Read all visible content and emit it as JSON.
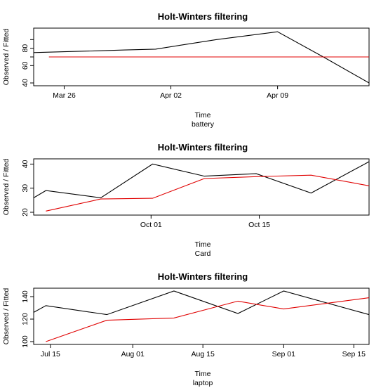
{
  "colors": {
    "observed": "#000000",
    "fitted": "#e00000",
    "axes": "#000000"
  },
  "chart_data": [
    {
      "type": "line",
      "title": "Holt-Winters filtering",
      "xlabel": "Time",
      "sublabel": "battery",
      "ylabel": "Observed / Fitted",
      "x": [
        0,
        1,
        2,
        3,
        4,
        5,
        6,
        7,
        8,
        9,
        10,
        11
      ],
      "xlim": [
        0,
        11
      ],
      "ylim": [
        40,
        100
      ],
      "yticks": [
        40,
        60,
        70,
        80,
        90
      ],
      "ytick_labels": [
        "40",
        "60",
        "80"
      ],
      "ytick_label_values": [
        40,
        60,
        80
      ],
      "xticks": [
        {
          "x": 1,
          "label": "Mar 26"
        },
        {
          "x": 4.5,
          "label": "Apr 02"
        },
        {
          "x": 8,
          "label": "Apr 09"
        }
      ],
      "series": [
        {
          "role": "observed",
          "points": [
            [
              0,
              75
            ],
            [
              1,
              76
            ],
            [
              2,
              77
            ],
            [
              3,
              78
            ],
            [
              4,
              79
            ],
            [
              6,
              90
            ],
            [
              8,
              99
            ],
            [
              9.5,
              70
            ],
            [
              11,
              40
            ]
          ]
        },
        {
          "role": "fitted",
          "points": [
            [
              0.5,
              70
            ],
            [
              11,
              70
            ]
          ]
        }
      ]
    },
    {
      "type": "line",
      "title": "Holt-Winters filtering",
      "xlabel": "Time",
      "sublabel": "Card",
      "ylabel": "Observed / Fitted",
      "xlim": [
        0,
        11
      ],
      "ylim": [
        20,
        41
      ],
      "yticks": [
        20,
        30,
        40
      ],
      "ytick_labels": [
        "20",
        "30",
        "40"
      ],
      "ytick_label_values": [
        20,
        30,
        40
      ],
      "xticks": [
        {
          "x": 3.85,
          "label": "Oct 01"
        },
        {
          "x": 7.4,
          "label": "Oct 15"
        }
      ],
      "series": [
        {
          "role": "observed",
          "points": [
            [
              0,
              26
            ],
            [
              0.4,
              29
            ],
            [
              2.2,
              26
            ],
            [
              3.9,
              40
            ],
            [
              5.6,
              35
            ],
            [
              7.3,
              36
            ],
            [
              9.1,
              28
            ],
            [
              11,
              41
            ]
          ]
        },
        {
          "role": "fitted",
          "points": [
            [
              0.4,
              20.5
            ],
            [
              2.2,
              25.5
            ],
            [
              3.9,
              25.8
            ],
            [
              5.6,
              34
            ],
            [
              7.3,
              34.8
            ],
            [
              9.1,
              35.4
            ],
            [
              11,
              31
            ]
          ]
        }
      ]
    },
    {
      "type": "line",
      "title": "Holt-Winters filtering",
      "xlabel": "Time",
      "sublabel": "laptop",
      "ylabel": "Observed / Fitted",
      "xlim": [
        0,
        11
      ],
      "ylim": [
        100,
        145
      ],
      "yticks": [
        100,
        120,
        140
      ],
      "ytick_labels": [
        "100",
        "120",
        "140"
      ],
      "ytick_label_values": [
        100,
        120,
        140
      ],
      "xticks": [
        {
          "x": 0.55,
          "label": "Jul 15"
        },
        {
          "x": 3.25,
          "label": "Aug 01"
        },
        {
          "x": 5.55,
          "label": "Aug 15"
        },
        {
          "x": 8.2,
          "label": "Sep 01"
        },
        {
          "x": 10.5,
          "label": "Sep 15"
        }
      ],
      "series": [
        {
          "role": "observed",
          "points": [
            [
              0,
              126
            ],
            [
              0.4,
              132
            ],
            [
              2.4,
              124
            ],
            [
              4.6,
              145
            ],
            [
              6.7,
              125
            ],
            [
              8.2,
              145
            ],
            [
              11,
              124
            ]
          ]
        },
        {
          "role": "fitted",
          "points": [
            [
              0.4,
              100
            ],
            [
              2.4,
              119
            ],
            [
              4.6,
              121
            ],
            [
              6.7,
              136
            ],
            [
              8.2,
              129
            ],
            [
              11,
              139
            ]
          ]
        }
      ]
    }
  ]
}
